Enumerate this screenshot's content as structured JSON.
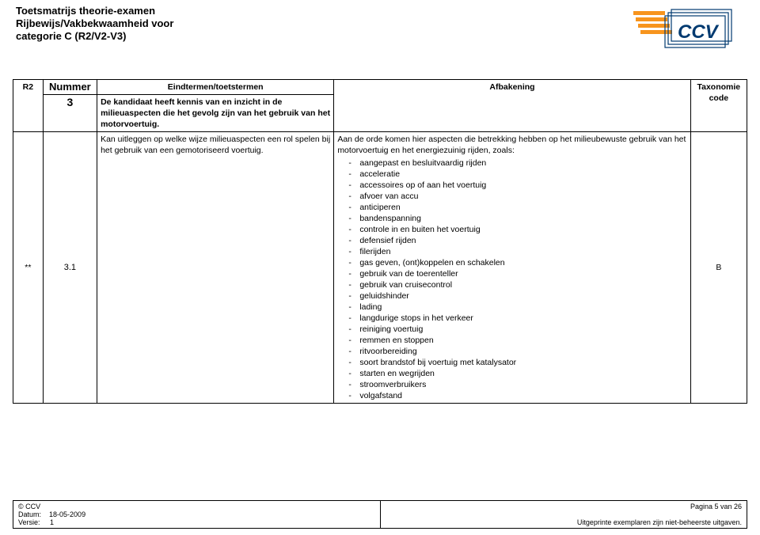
{
  "header": {
    "title_line1": "Toetsmatrijs theorie-examen",
    "title_line2": "Rijbewijs/Vakbekwaamheid voor",
    "title_line3": "categorie C (R2/V2-V3)"
  },
  "logo": {
    "text": "CCV",
    "stripe_color": "#f7941d",
    "text_color": "#003a70"
  },
  "table": {
    "headers": {
      "col0": "R2",
      "col1": "Nummer",
      "col2": "Eindtermen/toetstermen",
      "col3": "Afbakening",
      "col4_a": "Taxonomie",
      "col4_b": "code"
    },
    "row_subject": {
      "number": "3",
      "text": "De kandidaat heeft kennis van en inzicht in de milieuaspecten die het gevolg zijn van het gebruik van het motorvoertuig."
    },
    "row_detail": {
      "mark": "**",
      "number": "3.1",
      "eindterm": "Kan uitleggen op welke wijze milieuaspecten een rol spelen bij het gebruik van een gemotoriseerd voertuig.",
      "afbakening_intro": "Aan de orde komen hier aspecten die betrekking hebben op het milieubewuste gebruik van het motorvoertuig en het energiezuinig rijden, zoals:",
      "taxonomie": "B",
      "items": [
        "aangepast en besluitvaardig rijden",
        "acceleratie",
        "accessoires op of aan het voertuig",
        "afvoer van accu",
        "anticiperen",
        "bandenspanning",
        "controle in en buiten het voertuig",
        "defensief rijden",
        "filerijden",
        "gas geven, (ont)koppelen en schakelen",
        "gebruik van de toerenteller",
        "gebruik van cruisecontrol",
        "geluidshinder",
        "lading",
        "langdurige stops in het verkeer",
        "reiniging voertuig",
        "remmen en stoppen",
        "ritvoorbereiding",
        "soort brandstof bij voertuig met katalysator",
        "starten en wegrijden",
        "stroomverbruikers",
        "volgafstand"
      ]
    }
  },
  "footer": {
    "copyright": "© CCV",
    "date_label": "Datum:",
    "date_value": "18-05-2009",
    "version_label": "Versie:",
    "version_value": "1",
    "page": "Pagina 5 van 26",
    "disclaimer": "Uitgeprinte exemplaren zijn niet-beheerste uitgaven."
  }
}
